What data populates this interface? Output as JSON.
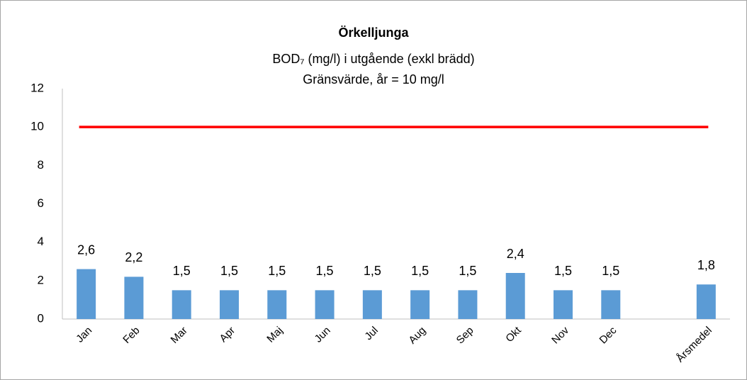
{
  "chart_data": {
    "type": "bar",
    "title": "Örkelljunga",
    "subtitle": [
      "BOD₇ (mg/l) i utgående (exkl brädd)",
      "Gränsvärde, år = 10 mg/l"
    ],
    "categories": [
      "Jan",
      "Feb",
      "Mar",
      "Apr",
      "Maj",
      "Jun",
      "Jul",
      "Aug",
      "Sep",
      "Okt",
      "Nov",
      "Dec",
      null,
      "Årsmedel"
    ],
    "values": [
      2.6,
      2.2,
      1.5,
      1.5,
      1.5,
      1.5,
      1.5,
      1.5,
      1.5,
      2.4,
      1.5,
      1.5,
      null,
      1.8
    ],
    "value_labels": [
      "2,6",
      "2,2",
      "1,5",
      "1,5",
      "1,5",
      "1,5",
      "1,5",
      "1,5",
      "1,5",
      "2,4",
      "1,5",
      "1,5",
      null,
      "1,8"
    ],
    "color": "#5b9bd5",
    "limit": {
      "value": 10,
      "color": "#ff0000"
    },
    "ylim": [
      0,
      12
    ],
    "yticks": [
      0,
      2,
      4,
      6,
      8,
      10,
      12
    ],
    "grid": false
  }
}
